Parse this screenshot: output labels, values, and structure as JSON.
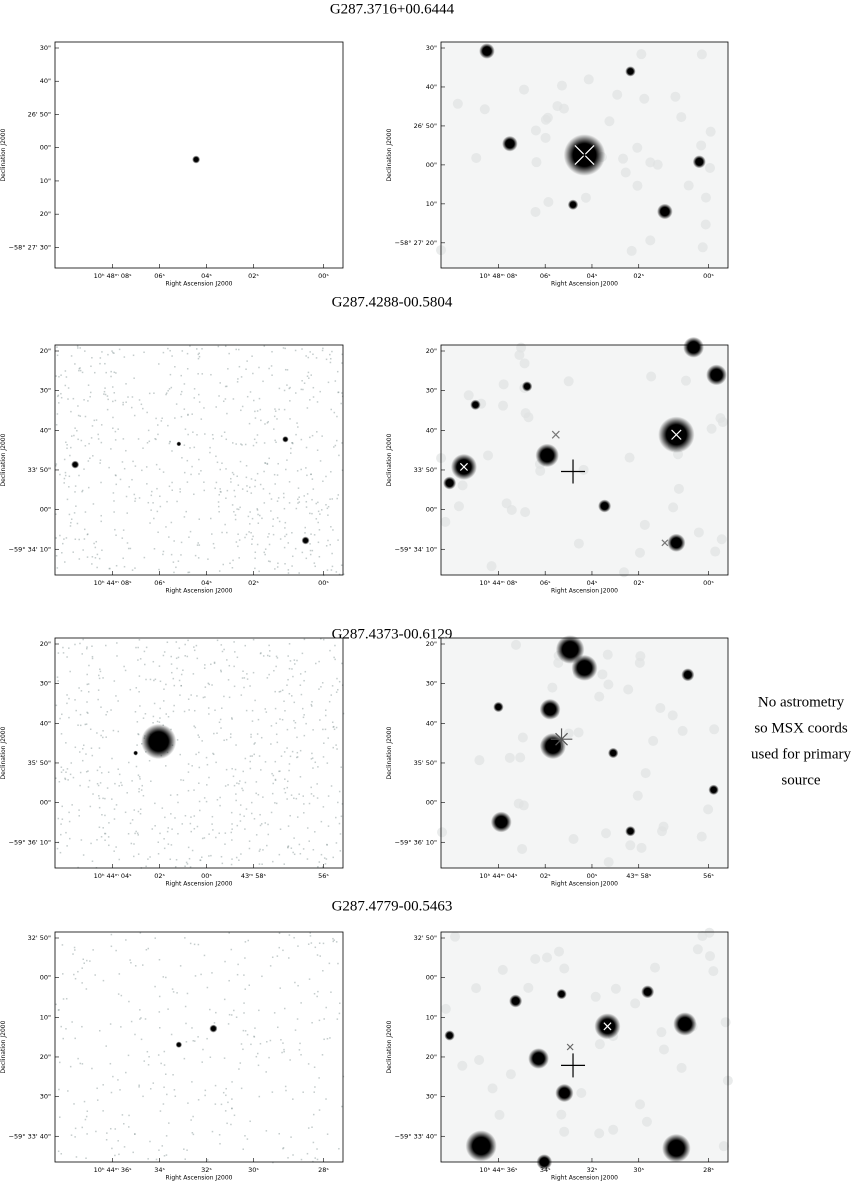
{
  "figure": {
    "rows": [
      {
        "title": "G287.3716+00.6444",
        "left": {
          "yticks": [
            "30\"",
            "40\"",
            "26' 50\"",
            "00\"",
            "10\"",
            "20\"",
            "−58° 27' 30\""
          ],
          "xticks": [
            "10ʰ 48ᵐ 08ˢ",
            "06ˢ",
            "04ˢ",
            "02ˢ",
            "00ˢ"
          ],
          "ylabel": "Declination J2000",
          "xlabel": "Right Ascension J2000"
        },
        "right": {
          "yticks": [
            "30\"",
            "40\"",
            "26' 50\"",
            "00\"",
            "10\"",
            "−58° 27' 20\""
          ],
          "xticks": [
            "10ʰ 48ᵐ 08ˢ",
            "06ˢ",
            "04ˢ",
            "02ˢ",
            "00ˢ"
          ],
          "ylabel": "Declination J2000",
          "xlabel": "Right Ascension J2000"
        }
      },
      {
        "title": "G287.4288-00.5804",
        "left": {
          "yticks": [
            "20\"",
            "30\"",
            "40\"",
            "33' 50\"",
            "00\"",
            "−59° 34' 10\""
          ],
          "xticks": [
            "10ʰ 44ᵐ 08ˢ",
            "06ˢ",
            "04ˢ",
            "02ˢ",
            "00ˢ"
          ],
          "ylabel": "Declination J2000",
          "xlabel": "Right Ascension J2000"
        },
        "right": {
          "yticks": [
            "20\"",
            "30\"",
            "40\"",
            "33' 50\"",
            "00\"",
            "−59° 34' 10\""
          ],
          "xticks": [
            "10ʰ 44ᵐ 08ˢ",
            "06ˢ",
            "04ˢ",
            "02ˢ",
            "00ˢ"
          ],
          "ylabel": "Declination J2000",
          "xlabel": "Right Ascension J2000"
        }
      },
      {
        "title": "G287.4373-00.6129",
        "left": {
          "yticks": [
            "20\"",
            "30\"",
            "40\"",
            "35' 50\"",
            "00\"",
            "−59° 36' 10\""
          ],
          "xticks": [
            "10ʰ 44ᵐ 04ˢ",
            "02ˢ",
            "00ˢ",
            "43ᵐ 58ˢ",
            "56ˢ"
          ],
          "ylabel": "Declination J2000",
          "xlabel": "Right Ascension J2000"
        },
        "right": {
          "yticks": [
            "20\"",
            "30\"",
            "40\"",
            "35' 50\"",
            "00\"",
            "−59° 36' 10\""
          ],
          "xticks": [
            "10ʰ 44ᵐ 04ˢ",
            "02ˢ",
            "00ˢ",
            "43ᵐ 58ˢ",
            "56ˢ"
          ],
          "ylabel": "Declination J2000",
          "xlabel": "Right Ascension J2000"
        }
      },
      {
        "title": "G287.4779-00.5463",
        "left": {
          "yticks": [
            "32' 50\"",
            "00\"",
            "10\"",
            "20\"",
            "30\"",
            "−59° 33' 40\""
          ],
          "xticks": [
            "10ʰ 44ᵐ 36ˢ",
            "34ˢ",
            "32ˢ",
            "30ˢ",
            "28ˢ"
          ],
          "ylabel": "Declination J2000",
          "xlabel": "Right Ascension J2000"
        },
        "right": {
          "yticks": [
            "32' 50\"",
            "00\"",
            "10\"",
            "20\"",
            "30\"",
            "−59° 33' 40\""
          ],
          "xticks": [
            "10ʰ 44ᵐ 36ˢ",
            "34ˢ",
            "32ˢ",
            "30ˢ",
            "28ˢ"
          ],
          "ylabel": "Declination J2000",
          "xlabel": "Right Ascension J2000"
        }
      }
    ],
    "note": [
      "No astrometry",
      "so MSX coords",
      "used for primary",
      "source"
    ]
  }
}
